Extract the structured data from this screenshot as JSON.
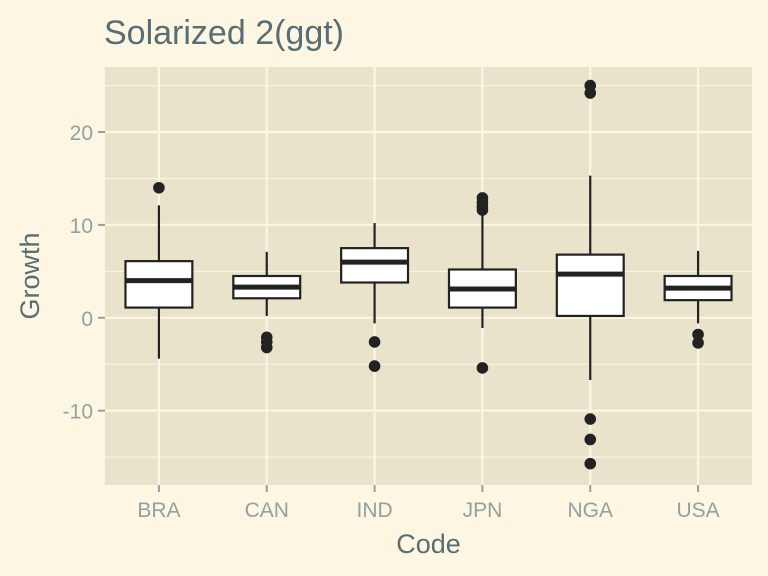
{
  "chart_data": {
    "type": "boxplot",
    "title": "Solarized  2(ggt)",
    "xlabel": "Code",
    "ylabel": "Growth",
    "ylim": [
      -18,
      27
    ],
    "yticks": [
      -10,
      0,
      10,
      20
    ],
    "grid": true,
    "legend": "none",
    "categories": [
      "BRA",
      "CAN",
      "IND",
      "JPN",
      "NGA",
      "USA"
    ],
    "boxes": [
      {
        "category": "BRA",
        "whisker_low": -4.4,
        "q1": 1.1,
        "median": 4.0,
        "q3": 6.1,
        "whisker_high": 12.1,
        "outliers": [
          14.0
        ]
      },
      {
        "category": "CAN",
        "whisker_low": 0.2,
        "q1": 2.1,
        "median": 3.3,
        "q3": 4.5,
        "whisker_high": 7.1,
        "outliers": [
          -2.1,
          -2.6,
          -3.2
        ]
      },
      {
        "category": "IND",
        "whisker_low": -0.6,
        "q1": 3.8,
        "median": 6.0,
        "q3": 7.5,
        "whisker_high": 10.2,
        "outliers": [
          -2.6,
          -5.2
        ]
      },
      {
        "category": "JPN",
        "whisker_low": -1.1,
        "q1": 1.1,
        "median": 3.1,
        "q3": 5.2,
        "whisker_high": 11.2,
        "outliers": [
          11.6,
          12.0,
          12.4,
          12.9,
          -5.4
        ]
      },
      {
        "category": "NGA",
        "whisker_low": -6.7,
        "q1": 0.2,
        "median": 4.7,
        "q3": 6.8,
        "whisker_high": 15.3,
        "outliers": [
          24.2,
          25.0,
          -10.9,
          -13.1,
          -15.7
        ]
      },
      {
        "category": "USA",
        "whisker_low": -0.6,
        "q1": 1.9,
        "median": 3.2,
        "q3": 4.5,
        "whisker_high": 7.2,
        "outliers": [
          -1.8,
          -2.7
        ]
      }
    ]
  },
  "colors": {
    "background": "#FDF6E3",
    "panel": "#EAE3CB",
    "grid": "#FDF6E3",
    "box_fill": "#FFFFFF",
    "ink": "#222222",
    "title_text": "#586E75",
    "tick_text": "#93A1A1",
    "tick_mark": "#93A1A1"
  }
}
